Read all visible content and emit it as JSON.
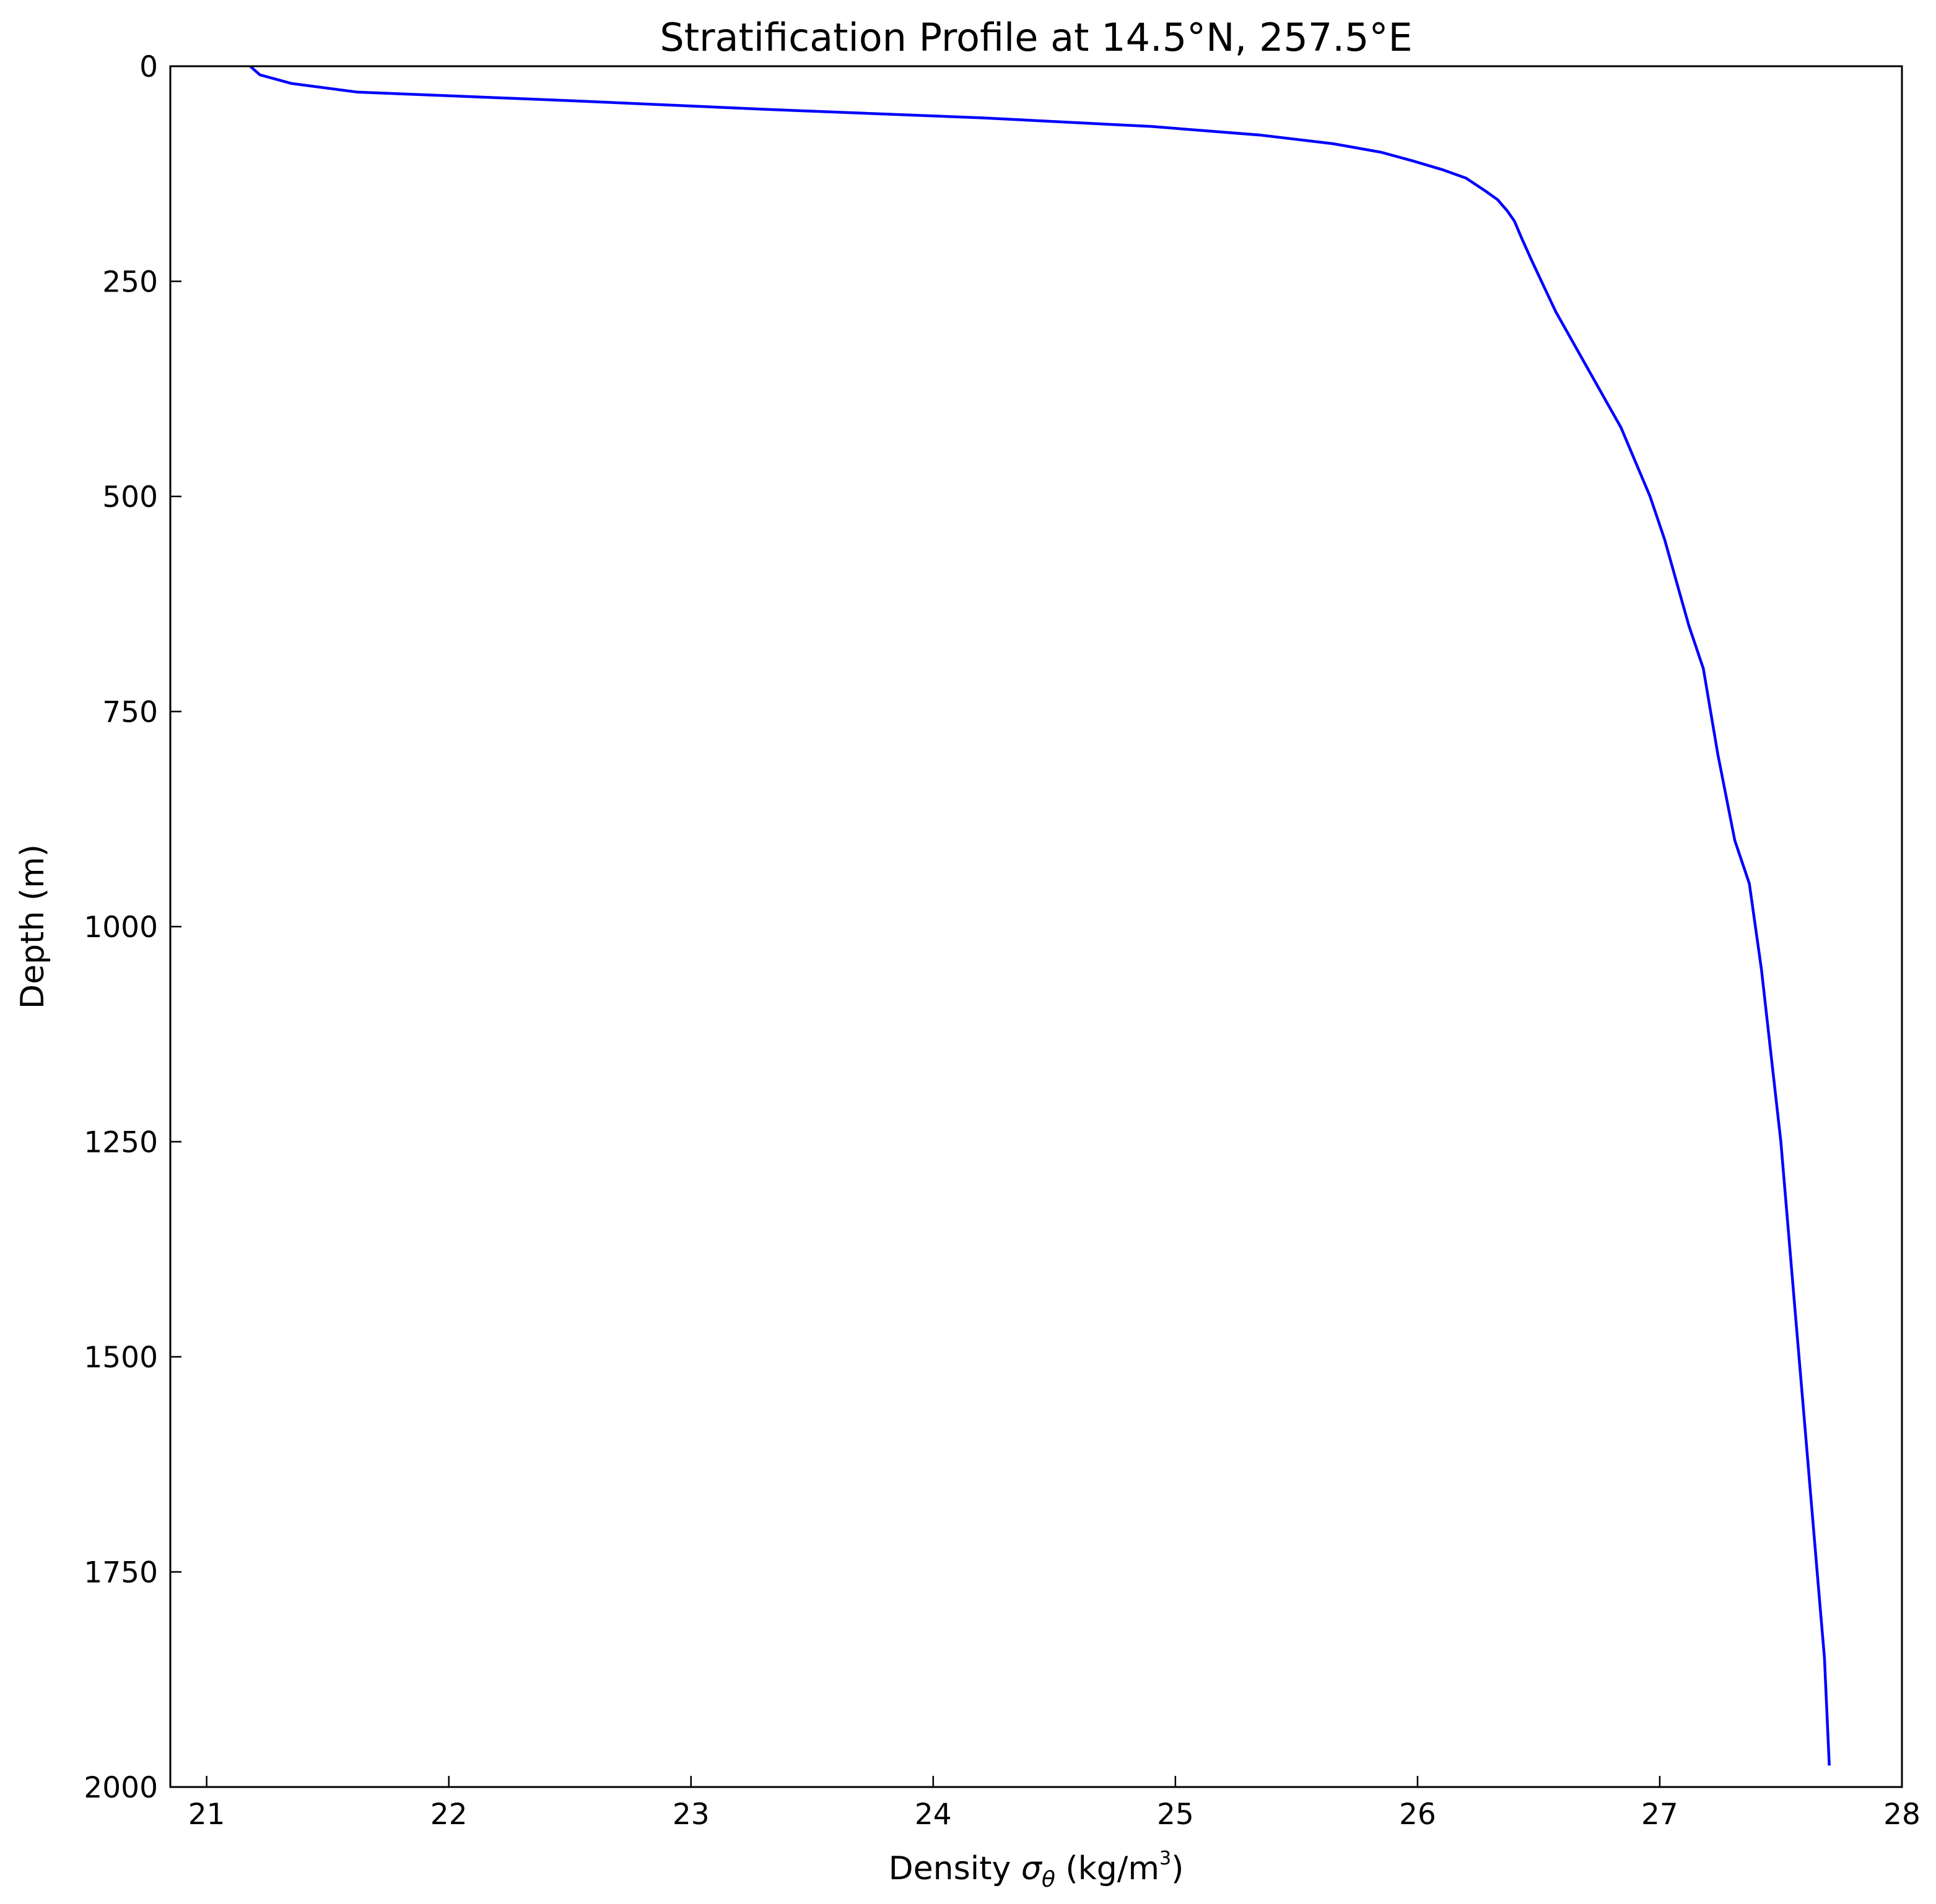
{
  "chart_data": {
    "type": "line",
    "title": "Stratification Profile at 14.5°N, 257.5°E",
    "xlabel": {
      "prefix": "Density ",
      "symbol": "σ",
      "subscript": "θ",
      "units": " (kg/m",
      "superscript": "3",
      "close": ")"
    },
    "ylabel": "Depth (m)",
    "xlim": [
      20.85,
      28.0
    ],
    "ylim": [
      2000,
      0
    ],
    "y_inverted": true,
    "grid": false,
    "xticks": [
      21,
      22,
      23,
      24,
      25,
      26,
      27,
      28
    ],
    "xtick_labels": [
      "21",
      "22",
      "23",
      "24",
      "25",
      "26",
      "27",
      "28"
    ],
    "yticks": [
      0,
      250,
      500,
      750,
      1000,
      1250,
      1500,
      1750,
      2000
    ],
    "ytick_labels": [
      "0",
      "250",
      "500",
      "750",
      "1000",
      "1250",
      "1500",
      "1750",
      "2000"
    ],
    "series": [
      {
        "color": "#0000ff",
        "x": [
          21.18,
          21.22,
          21.35,
          21.62,
          22.5,
          23.3,
          24.2,
          24.9,
          25.35,
          25.65,
          25.85,
          25.98,
          26.1,
          26.2,
          26.28,
          26.33,
          26.37,
          26.4,
          26.43,
          26.47,
          26.52,
          26.57,
          26.63,
          26.7,
          26.78,
          26.84,
          26.9,
          26.96,
          27.02,
          27.07,
          27.12,
          27.18,
          27.24,
          27.31,
          27.37,
          27.42,
          27.46,
          27.5,
          27.53,
          27.56,
          27.59,
          27.62,
          27.65,
          27.68,
          27.7
        ],
        "y": [
          0,
          10,
          20,
          30,
          40,
          50,
          60,
          70,
          80,
          90,
          100,
          110,
          120,
          130,
          145,
          155,
          168,
          180,
          200,
          225,
          255,
          285,
          315,
          350,
          390,
          420,
          460,
          500,
          550,
          600,
          650,
          700,
          800,
          900,
          950,
          1050,
          1150,
          1250,
          1350,
          1450,
          1550,
          1650,
          1750,
          1850,
          1975
        ]
      }
    ]
  }
}
